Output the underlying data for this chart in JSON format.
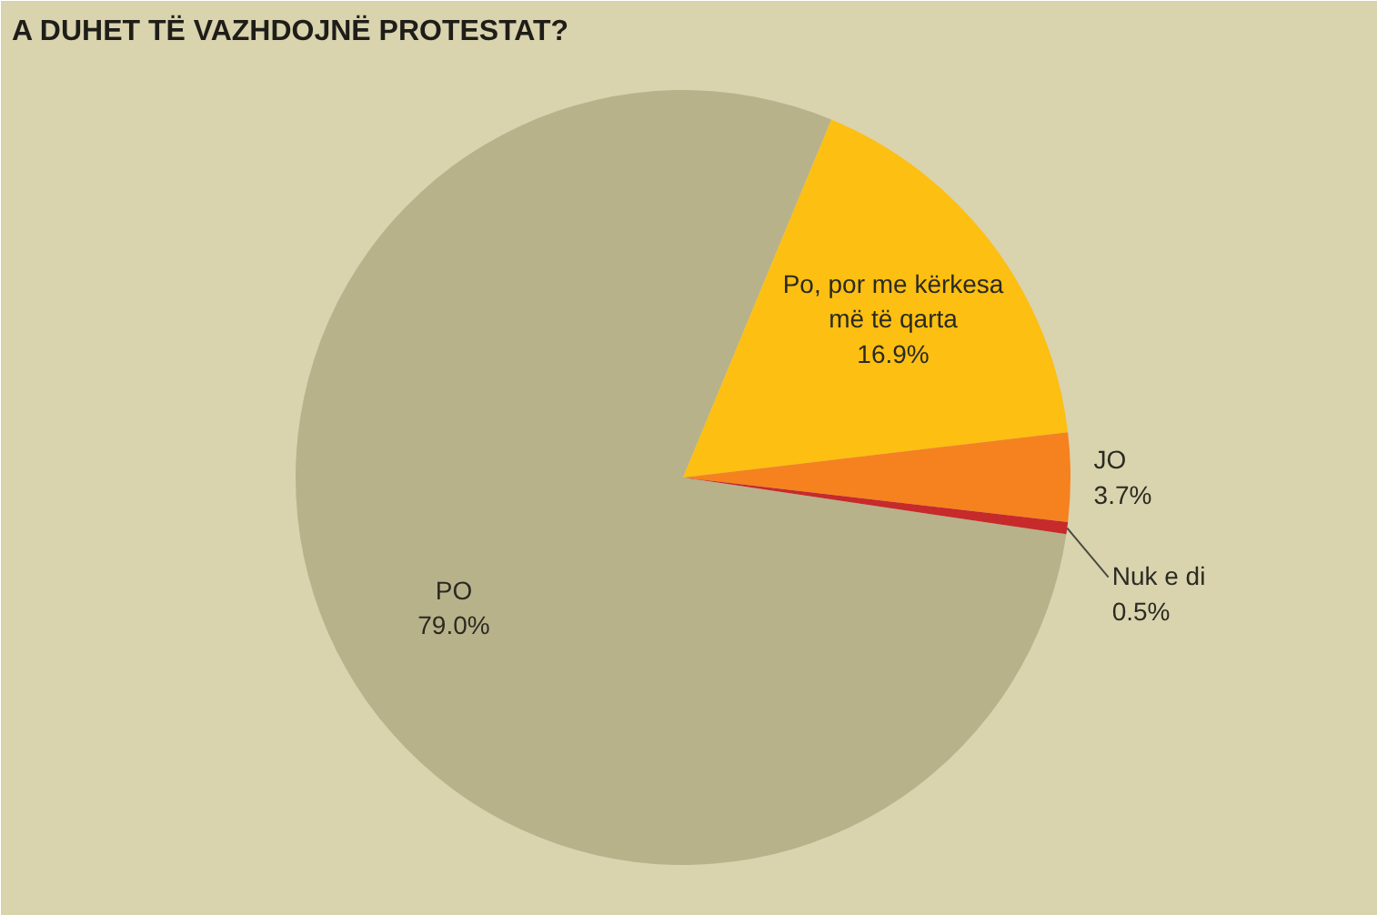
{
  "chart_data": {
    "type": "pie",
    "title": "A DUHET TË VAZHDOJNË PROTESTAT?",
    "categories": [
      "PO",
      "Po, por me kërkesa më të qarta",
      "JO",
      "Nuk e di"
    ],
    "values": [
      79.0,
      16.9,
      3.7,
      0.5
    ],
    "colors": [
      "#b8b28b",
      "#fcbf12",
      "#f5821f",
      "#c62a2a"
    ],
    "value_labels": [
      "79.0%",
      "16.9%",
      "3.7%",
      "0.5%"
    ]
  }
}
